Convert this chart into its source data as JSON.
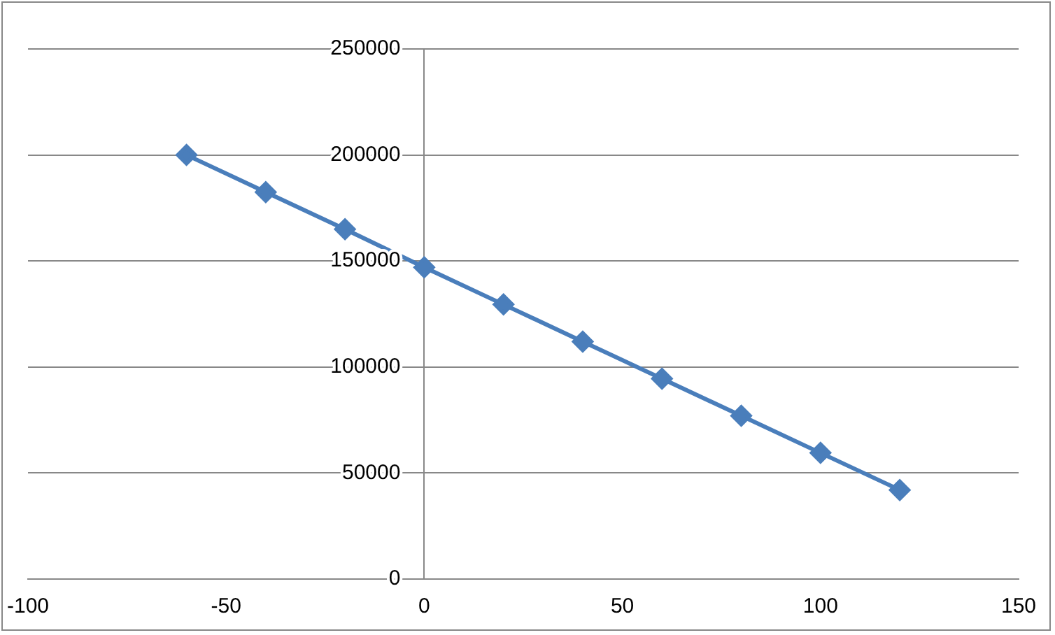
{
  "chart_data": {
    "type": "line",
    "x": [
      -60,
      -40,
      -20,
      0,
      20,
      40,
      60,
      80,
      100,
      120
    ],
    "series": [
      {
        "color": "#4a7ebb",
        "values": [
          200000,
          182500,
          165000,
          147000,
          129500,
          112000,
          94500,
          77000,
          59500,
          42000
        ]
      }
    ],
    "xlim": [
      -100,
      150
    ],
    "xticks": [
      -100,
      -50,
      0,
      50,
      100,
      150
    ],
    "ylim": [
      0,
      250000
    ],
    "yticks": [
      0,
      50000,
      100000,
      150000,
      200000,
      250000
    ],
    "grid": "y",
    "legend": false,
    "marker": "diamond",
    "line_style": "solid"
  }
}
